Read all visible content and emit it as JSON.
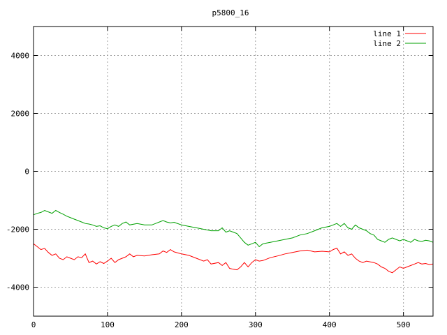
{
  "chart_data": {
    "type": "line",
    "title": "p5800_16",
    "xlabel": "",
    "ylabel": "",
    "xlim": [
      0,
      540
    ],
    "ylim": [
      -5000,
      5000
    ],
    "xticks": [
      0,
      100,
      200,
      300,
      400,
      500
    ],
    "yticks": [
      -4000,
      -2000,
      0,
      2000,
      4000
    ],
    "grid": true,
    "legend_position": "top-right",
    "series": [
      {
        "name": "line 1",
        "color": "#ff0000",
        "points": [
          [
            0,
            -2500
          ],
          [
            5,
            -2600
          ],
          [
            10,
            -2700
          ],
          [
            15,
            -2660
          ],
          [
            20,
            -2800
          ],
          [
            25,
            -2900
          ],
          [
            30,
            -2850
          ],
          [
            35,
            -3000
          ],
          [
            40,
            -3050
          ],
          [
            45,
            -2950
          ],
          [
            50,
            -3000
          ],
          [
            55,
            -3050
          ],
          [
            60,
            -2950
          ],
          [
            65,
            -2980
          ],
          [
            70,
            -2850
          ],
          [
            75,
            -3150
          ],
          [
            80,
            -3100
          ],
          [
            85,
            -3200
          ],
          [
            90,
            -3120
          ],
          [
            95,
            -3180
          ],
          [
            100,
            -3100
          ],
          [
            105,
            -3000
          ],
          [
            110,
            -3150
          ],
          [
            115,
            -3050
          ],
          [
            120,
            -3000
          ],
          [
            125,
            -2950
          ],
          [
            130,
            -2850
          ],
          [
            135,
            -2950
          ],
          [
            140,
            -2900
          ],
          [
            150,
            -2920
          ],
          [
            160,
            -2880
          ],
          [
            170,
            -2850
          ],
          [
            175,
            -2750
          ],
          [
            180,
            -2800
          ],
          [
            185,
            -2700
          ],
          [
            190,
            -2780
          ],
          [
            200,
            -2850
          ],
          [
            210,
            -2900
          ],
          [
            220,
            -3000
          ],
          [
            230,
            -3100
          ],
          [
            235,
            -3050
          ],
          [
            240,
            -3200
          ],
          [
            250,
            -3150
          ],
          [
            255,
            -3250
          ],
          [
            260,
            -3150
          ],
          [
            265,
            -3350
          ],
          [
            270,
            -3380
          ],
          [
            275,
            -3400
          ],
          [
            280,
            -3300
          ],
          [
            285,
            -3150
          ],
          [
            290,
            -3300
          ],
          [
            295,
            -3150
          ],
          [
            300,
            -3050
          ],
          [
            305,
            -3100
          ],
          [
            310,
            -3080
          ],
          [
            320,
            -2980
          ],
          [
            330,
            -2920
          ],
          [
            340,
            -2850
          ],
          [
            350,
            -2800
          ],
          [
            360,
            -2750
          ],
          [
            370,
            -2720
          ],
          [
            380,
            -2780
          ],
          [
            390,
            -2760
          ],
          [
            400,
            -2780
          ],
          [
            405,
            -2700
          ],
          [
            410,
            -2650
          ],
          [
            415,
            -2850
          ],
          [
            420,
            -2780
          ],
          [
            425,
            -2900
          ],
          [
            430,
            -2850
          ],
          [
            435,
            -3000
          ],
          [
            440,
            -3100
          ],
          [
            445,
            -3150
          ],
          [
            450,
            -3100
          ],
          [
            460,
            -3150
          ],
          [
            465,
            -3200
          ],
          [
            470,
            -3300
          ],
          [
            475,
            -3350
          ],
          [
            480,
            -3450
          ],
          [
            485,
            -3500
          ],
          [
            490,
            -3400
          ],
          [
            495,
            -3300
          ],
          [
            500,
            -3350
          ],
          [
            505,
            -3300
          ],
          [
            510,
            -3250
          ],
          [
            515,
            -3200
          ],
          [
            520,
            -3150
          ],
          [
            525,
            -3200
          ],
          [
            530,
            -3180
          ],
          [
            535,
            -3220
          ],
          [
            540,
            -3200
          ]
        ]
      },
      {
        "name": "line 2",
        "color": "#00a000",
        "points": [
          [
            0,
            -1500
          ],
          [
            5,
            -1450
          ],
          [
            10,
            -1420
          ],
          [
            15,
            -1350
          ],
          [
            20,
            -1400
          ],
          [
            25,
            -1450
          ],
          [
            30,
            -1350
          ],
          [
            35,
            -1420
          ],
          [
            40,
            -1480
          ],
          [
            45,
            -1550
          ],
          [
            50,
            -1600
          ],
          [
            55,
            -1650
          ],
          [
            60,
            -1700
          ],
          [
            65,
            -1750
          ],
          [
            70,
            -1800
          ],
          [
            75,
            -1820
          ],
          [
            80,
            -1850
          ],
          [
            85,
            -1900
          ],
          [
            90,
            -1880
          ],
          [
            95,
            -1950
          ],
          [
            100,
            -1980
          ],
          [
            105,
            -1900
          ],
          [
            110,
            -1850
          ],
          [
            115,
            -1900
          ],
          [
            120,
            -1800
          ],
          [
            125,
            -1750
          ],
          [
            130,
            -1850
          ],
          [
            140,
            -1800
          ],
          [
            150,
            -1850
          ],
          [
            160,
            -1850
          ],
          [
            165,
            -1800
          ],
          [
            170,
            -1750
          ],
          [
            175,
            -1700
          ],
          [
            180,
            -1750
          ],
          [
            185,
            -1780
          ],
          [
            190,
            -1760
          ],
          [
            200,
            -1850
          ],
          [
            210,
            -1900
          ],
          [
            220,
            -1950
          ],
          [
            230,
            -2000
          ],
          [
            240,
            -2050
          ],
          [
            250,
            -2050
          ],
          [
            255,
            -1950
          ],
          [
            260,
            -2100
          ],
          [
            265,
            -2050
          ],
          [
            270,
            -2100
          ],
          [
            275,
            -2150
          ],
          [
            280,
            -2300
          ],
          [
            285,
            -2450
          ],
          [
            290,
            -2550
          ],
          [
            295,
            -2500
          ],
          [
            300,
            -2450
          ],
          [
            305,
            -2600
          ],
          [
            310,
            -2500
          ],
          [
            320,
            -2450
          ],
          [
            330,
            -2400
          ],
          [
            340,
            -2350
          ],
          [
            350,
            -2300
          ],
          [
            360,
            -2200
          ],
          [
            370,
            -2150
          ],
          [
            380,
            -2050
          ],
          [
            390,
            -1950
          ],
          [
            400,
            -1900
          ],
          [
            405,
            -1850
          ],
          [
            410,
            -1800
          ],
          [
            415,
            -1900
          ],
          [
            420,
            -1800
          ],
          [
            425,
            -1950
          ],
          [
            430,
            -2000
          ],
          [
            435,
            -1850
          ],
          [
            440,
            -1950
          ],
          [
            445,
            -2000
          ],
          [
            450,
            -2050
          ],
          [
            455,
            -2150
          ],
          [
            460,
            -2200
          ],
          [
            465,
            -2350
          ],
          [
            470,
            -2400
          ],
          [
            475,
            -2450
          ],
          [
            480,
            -2350
          ],
          [
            485,
            -2300
          ],
          [
            490,
            -2350
          ],
          [
            495,
            -2400
          ],
          [
            500,
            -2350
          ],
          [
            505,
            -2400
          ],
          [
            510,
            -2450
          ],
          [
            515,
            -2350
          ],
          [
            520,
            -2400
          ],
          [
            525,
            -2420
          ],
          [
            530,
            -2380
          ],
          [
            535,
            -2400
          ],
          [
            540,
            -2450
          ]
        ]
      }
    ]
  }
}
